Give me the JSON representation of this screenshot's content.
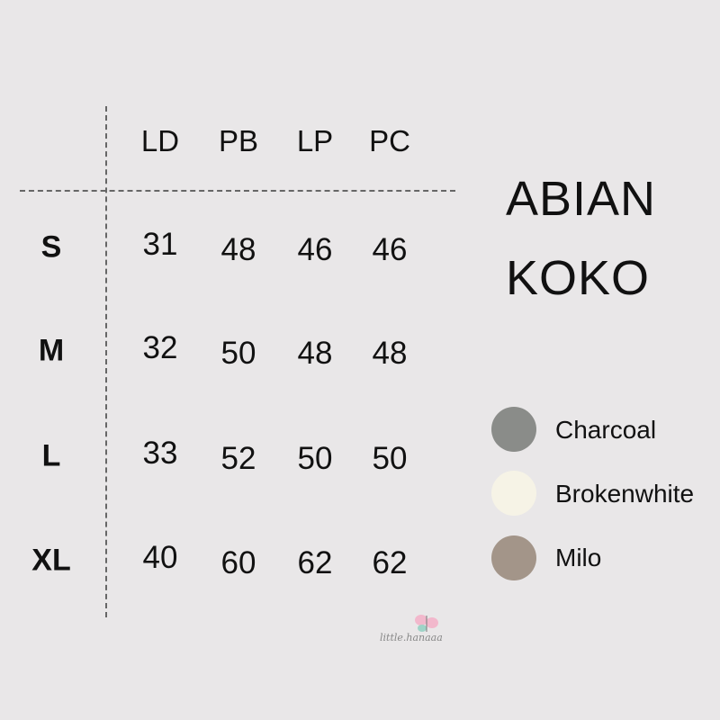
{
  "title": {
    "line1": "ABIAN",
    "line2": "KOKO"
  },
  "table": {
    "columns": [
      "LD",
      "PB",
      "LP",
      "PC"
    ],
    "rows": [
      {
        "size": "S",
        "values": [
          "31",
          "48",
          "46",
          "46"
        ]
      },
      {
        "size": "M",
        "values": [
          "32",
          "50",
          "48",
          "48"
        ]
      },
      {
        "size": "L",
        "values": [
          "33",
          "52",
          "50",
          "50"
        ]
      },
      {
        "size": "XL",
        "values": [
          "40",
          "60",
          "62",
          "62"
        ]
      }
    ]
  },
  "colors": [
    {
      "label": "Charcoal",
      "hex": "#8a8c89"
    },
    {
      "label": "Brokenwhite",
      "hex": "#f6f3e6"
    },
    {
      "label": "Milo",
      "hex": "#a39589"
    }
  ],
  "logo": {
    "text": "little.hanaaa"
  }
}
